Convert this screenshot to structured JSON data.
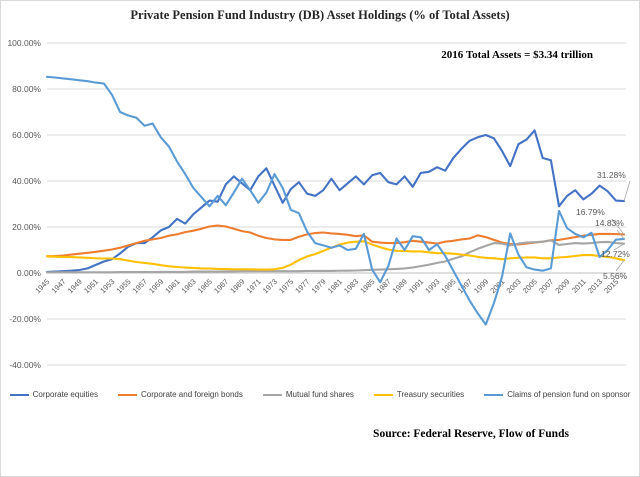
{
  "title": "Private Pension Fund Industry (DB) Asset Holdings (% of Total Assets)",
  "annotation": "2016 Total Assets = $3.34 trillion",
  "source": "Source:  Federal Reserve, Flow of Funds",
  "chart_data": {
    "type": "line",
    "title": "Private Pension Fund Industry (DB) Asset Holdings (% of Total Assets)",
    "xlabel": "",
    "ylabel": "",
    "ylim": [
      -40,
      100
    ],
    "grid": true,
    "legend_position": "bottom",
    "y_tick_labels": [
      "100.00%",
      "80.00%",
      "60.00%",
      "40.00%",
      "20.00%",
      "0.00%",
      "-20.00%",
      "-40.00%"
    ],
    "y_tick_values": [
      100,
      80,
      60,
      40,
      20,
      0,
      -20,
      -40
    ],
    "x_tick_labels": [
      "1945",
      "1947",
      "1949",
      "1951",
      "1953",
      "1955",
      "1957",
      "1959",
      "1961",
      "1963",
      "1965",
      "1967",
      "1969",
      "1971",
      "1973",
      "1975",
      "1977",
      "1979",
      "1981",
      "1983",
      "1985",
      "1987",
      "1989",
      "1991",
      "1993",
      "1995",
      "1997",
      "1999",
      "2001",
      "2003",
      "2005",
      "2007",
      "2009",
      "2011",
      "2013",
      "2015"
    ],
    "x": [
      1945,
      1946,
      1947,
      1948,
      1949,
      1950,
      1951,
      1952,
      1953,
      1954,
      1955,
      1956,
      1957,
      1958,
      1959,
      1960,
      1961,
      1962,
      1963,
      1964,
      1965,
      1966,
      1967,
      1968,
      1969,
      1970,
      1971,
      1972,
      1973,
      1974,
      1975,
      1976,
      1977,
      1978,
      1979,
      1980,
      1981,
      1982,
      1983,
      1984,
      1985,
      1986,
      1987,
      1988,
      1989,
      1990,
      1991,
      1992,
      1993,
      1994,
      1995,
      1996,
      1997,
      1998,
      1999,
      2000,
      2001,
      2002,
      2003,
      2004,
      2005,
      2006,
      2007,
      2008,
      2009,
      2010,
      2011,
      2012,
      2013,
      2014,
      2015,
      2016
    ],
    "series": [
      {
        "name": "Corporate equities",
        "color": "#4472C4",
        "end_label": "31.28%",
        "values": [
          0.5,
          0.6,
          0.8,
          1.0,
          1.3,
          2.0,
          3.5,
          5.0,
          6.0,
          8.5,
          11.5,
          13.0,
          13.0,
          15.5,
          18.5,
          20.0,
          23.5,
          21.5,
          25.5,
          28.5,
          31.5,
          31.0,
          38.5,
          42.0,
          39.0,
          36.0,
          42.0,
          45.5,
          38.0,
          30.5,
          36.5,
          39.5,
          34.5,
          33.5,
          36.0,
          41.0,
          36.0,
          39.0,
          42.0,
          38.5,
          42.5,
          43.5,
          39.5,
          38.5,
          42.0,
          37.5,
          43.5,
          44.0,
          46.0,
          44.5,
          50.0,
          54.0,
          57.5,
          59.0,
          60.0,
          58.5,
          53.0,
          46.5,
          56.0,
          58.0,
          62.0,
          50.0,
          49.0,
          29.0,
          33.5,
          36.0,
          32.0,
          34.5,
          38.0,
          35.5,
          31.5,
          31.28
        ]
      },
      {
        "name": "Corporate and foreign bonds",
        "color": "#ED7D31",
        "end_label": "16.79%",
        "values": [
          7.3,
          7.4,
          7.6,
          8.0,
          8.4,
          8.8,
          9.2,
          9.7,
          10.2,
          11.0,
          12.0,
          13.0,
          14.0,
          14.6,
          15.2,
          16.2,
          16.8,
          17.8,
          18.4,
          19.2,
          20.2,
          20.6,
          20.2,
          19.2,
          18.2,
          17.6,
          16.2,
          15.2,
          14.6,
          14.4,
          14.4,
          15.8,
          16.8,
          17.4,
          17.6,
          17.2,
          17.0,
          16.6,
          16.0,
          16.4,
          13.6,
          13.2,
          13.0,
          13.0,
          13.4,
          14.0,
          13.6,
          13.2,
          12.8,
          13.6,
          14.0,
          14.6,
          15.0,
          16.4,
          15.6,
          14.4,
          13.2,
          12.6,
          12.4,
          12.8,
          13.2,
          13.6,
          14.2,
          14.4,
          15.0,
          15.6,
          16.2,
          16.6,
          17.0,
          17.0,
          16.9,
          16.79
        ]
      },
      {
        "name": "Mutual fund shares",
        "color": "#A5A5A5",
        "end_label": "12.72%",
        "values": [
          0.3,
          0.3,
          0.3,
          0.3,
          0.3,
          0.3,
          0.3,
          0.3,
          0.3,
          0.4,
          0.4,
          0.4,
          0.4,
          0.4,
          0.5,
          0.5,
          0.5,
          0.5,
          0.6,
          0.6,
          0.6,
          0.6,
          0.7,
          0.7,
          0.8,
          0.8,
          0.8,
          0.8,
          0.8,
          0.8,
          0.8,
          0.8,
          0.9,
          0.9,
          0.9,
          0.9,
          1.0,
          1.0,
          1.1,
          1.2,
          1.4,
          1.5,
          1.6,
          1.8,
          2.0,
          2.4,
          3.0,
          3.6,
          4.4,
          5.0,
          6.2,
          7.2,
          9.0,
          10.5,
          11.8,
          13.0,
          12.8,
          12.0,
          12.8,
          13.2,
          13.4,
          13.6,
          14.2,
          12.2,
          12.6,
          13.0,
          12.8,
          13.0,
          13.4,
          13.5,
          13.0,
          12.72
        ]
      },
      {
        "name": "Treasury securities",
        "color": "#FFC000",
        "end_label": "5.56%",
        "values": [
          7.2,
          7.1,
          7.0,
          6.9,
          6.8,
          6.6,
          6.4,
          6.3,
          6.3,
          6.0,
          5.4,
          4.8,
          4.4,
          4.0,
          3.4,
          2.9,
          2.6,
          2.4,
          2.2,
          2.0,
          1.9,
          1.8,
          1.7,
          1.6,
          1.6,
          1.6,
          1.5,
          1.5,
          1.6,
          2.2,
          3.6,
          5.6,
          7.2,
          8.2,
          9.6,
          11.0,
          12.4,
          13.2,
          13.6,
          13.8,
          12.4,
          11.2,
          10.2,
          9.6,
          9.6,
          9.4,
          9.4,
          9.0,
          8.6,
          8.6,
          8.4,
          8.0,
          7.6,
          7.0,
          6.6,
          6.4,
          6.0,
          6.4,
          6.6,
          6.8,
          6.8,
          6.4,
          6.4,
          6.8,
          7.0,
          7.4,
          7.8,
          7.8,
          7.4,
          7.0,
          6.4,
          5.56
        ]
      },
      {
        "name": "Claims of pension fund on sponsor",
        "color": "#5B9BD5",
        "end_label": "14.83%",
        "values": [
          85.3,
          85.0,
          84.6,
          84.2,
          83.8,
          83.4,
          82.8,
          82.4,
          77.5,
          70.0,
          68.5,
          67.5,
          64.0,
          65.0,
          59.0,
          55.0,
          48.5,
          43.0,
          37.0,
          33.0,
          29.0,
          33.5,
          29.5,
          35.0,
          41.0,
          36.0,
          30.5,
          35.0,
          43.0,
          37.0,
          27.5,
          26.0,
          18.0,
          13.0,
          12.0,
          11.0,
          12.0,
          10.0,
          10.5,
          17.0,
          1.5,
          -4.0,
          3.0,
          15.0,
          10.0,
          16.0,
          15.5,
          10.0,
          12.5,
          7.5,
          1.0,
          -5.5,
          -12.0,
          -17.5,
          -22.4,
          -13.0,
          -1.5,
          17.2,
          8.0,
          2.5,
          1.5,
          1.0,
          2.0,
          27.0,
          19.5,
          17.0,
          15.5,
          17.5,
          7.0,
          10.0,
          14.5,
          14.83
        ]
      }
    ]
  }
}
